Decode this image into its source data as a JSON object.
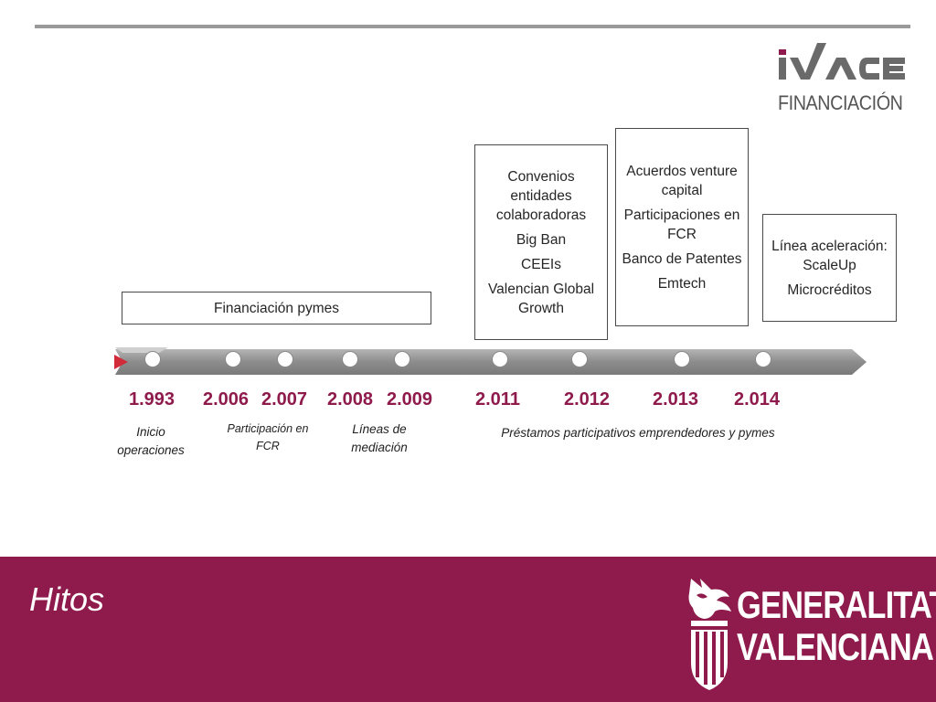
{
  "logo": {
    "brand": "IVACE",
    "subtitle": "FINANCIACIÓN"
  },
  "boxes": {
    "pymes": [
      "Financiación pymes"
    ],
    "convenios": [
      "Convenios entidades colaboradoras",
      "Big Ban",
      "CEEIs",
      "Valencian Global Growth"
    ],
    "acuerdos": [
      "Acuerdos venture capital",
      "Participaciones en FCR",
      "Banco de Patentes",
      "Emtech"
    ],
    "linea": [
      "Línea aceleración: ScaleUp",
      "Microcréditos"
    ]
  },
  "timeline": {
    "years": [
      "1.993",
      "2.006",
      "2.007",
      "2.008",
      "2.009",
      "2.011",
      "2.012",
      "2.013",
      "2.014"
    ],
    "captions": {
      "inicio": "Inicio operaciones",
      "participacion": "Participación en FCR",
      "lineas": "Líneas de mediación",
      "prestamos": "Préstamos participativos emprendedores y pymes"
    }
  },
  "footer": {
    "title": "Hitos",
    "org_line1": "GENERALITAT",
    "org_line2": "VALENCIANA"
  },
  "colors": {
    "accent": "#8e1b4b",
    "rule": "#9a9a9a",
    "arrow_fill": "#8c8c8c",
    "arrow_tip": "#d12b3a"
  }
}
